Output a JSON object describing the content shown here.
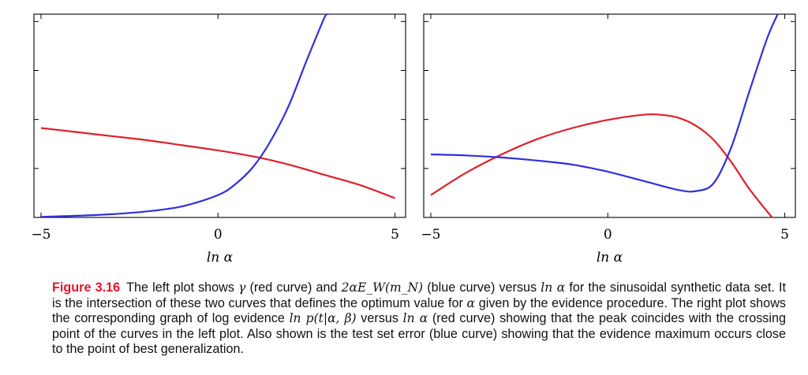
{
  "chart_data": [
    {
      "type": "line",
      "panel": "left",
      "title": "",
      "xlabel": "ln α",
      "ylabel": "",
      "xlim": [
        -5.2,
        5.3
      ],
      "ylim": [
        0,
        1
      ],
      "xticks": [
        -5,
        0,
        5
      ],
      "xtick_labels": [
        "−5",
        "0",
        "5"
      ],
      "yticks_unlabeled": 4,
      "series": [
        {
          "color": "#e0202a",
          "x": [
            -5,
            -4,
            -3,
            -2,
            -1,
            0,
            1,
            2,
            3,
            4,
            5
          ],
          "y": [
            0.44,
            0.42,
            0.4,
            0.38,
            0.355,
            0.33,
            0.3,
            0.26,
            0.21,
            0.16,
            0.095
          ]
        },
        {
          "color": "#2f2fe0",
          "x": [
            -5,
            -4,
            -3,
            -2,
            -1,
            0,
            0.5,
            1,
            1.5,
            2,
            2.5,
            3,
            3.1
          ],
          "y": [
            0.003,
            0.008,
            0.016,
            0.03,
            0.055,
            0.11,
            0.165,
            0.25,
            0.38,
            0.55,
            0.77,
            0.98,
            1.0
          ]
        }
      ]
    },
    {
      "type": "line",
      "panel": "right",
      "title": "",
      "xlabel": "ln α",
      "ylabel": "",
      "xlim": [
        -5.2,
        5.3
      ],
      "ylim": [
        0,
        1
      ],
      "xticks": [
        -5,
        0,
        5
      ],
      "xtick_labels": [
        "−5",
        "0",
        "5"
      ],
      "yticks_unlabeled": 4,
      "series": [
        {
          "color": "#e0202a",
          "x": [
            -5,
            -4,
            -3,
            -2,
            -1,
            0,
            1,
            1.5,
            2,
            2.5,
            3,
            3.5,
            4,
            4.5,
            4.7
          ],
          "y": [
            0.11,
            0.22,
            0.31,
            0.385,
            0.44,
            0.48,
            0.505,
            0.505,
            0.49,
            0.45,
            0.38,
            0.27,
            0.14,
            0.03,
            -0.01
          ]
        },
        {
          "color": "#2f2fe0",
          "x": [
            -5,
            -4,
            -3,
            -2,
            -1,
            0,
            1,
            2,
            2.5,
            3,
            3.5,
            4,
            4.5,
            4.8
          ],
          "y": [
            0.31,
            0.305,
            0.295,
            0.28,
            0.26,
            0.225,
            0.18,
            0.135,
            0.13,
            0.17,
            0.35,
            0.62,
            0.88,
            1.0
          ]
        }
      ]
    }
  ],
  "caption": {
    "label": "Figure 3.16",
    "p1": "The left plot shows ",
    "m1": "γ",
    "p2": " (red curve) and ",
    "m2": "2αE_W(m_N)",
    "p3": " (blue curve) versus ",
    "m3": "ln α",
    "p4": " for the sinusoidal synthetic data set. It is the intersection of these two curves that defines the optimum value for ",
    "m4": "α",
    "p5": " given by the evidence procedure. The right plot shows the corresponding graph of log evidence ",
    "m5": "ln p(t|α, β)",
    "p6": " versus ",
    "m6": "ln α",
    "p7": " (red curve) showing that the peak coincides with the crossing point of the curves in the left plot. Also shown is the test set error (blue curve) showing that the evidence maximum occurs close to the point of best generalization."
  }
}
